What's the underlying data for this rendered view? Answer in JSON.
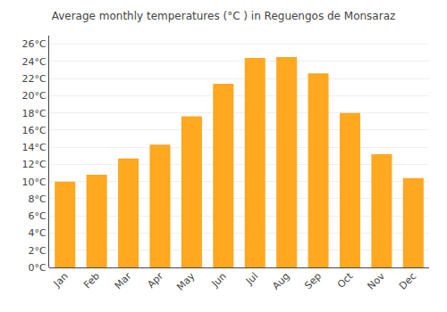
{
  "chart_data": {
    "type": "bar",
    "title": "Average monthly temperatures (°C ) in Reguengos de Monsaraz",
    "categories": [
      "Jan",
      "Feb",
      "Mar",
      "Apr",
      "May",
      "Jun",
      "Jul",
      "Aug",
      "Sep",
      "Oct",
      "Nov",
      "Dec"
    ],
    "values": [
      10.0,
      10.8,
      12.7,
      14.3,
      17.6,
      21.4,
      24.4,
      24.5,
      22.6,
      18.0,
      13.2,
      10.4
    ],
    "color": "#FFA820",
    "ylim": [
      0,
      27
    ],
    "yticks": [
      {
        "value": 0,
        "label": "0°C"
      },
      {
        "value": 2,
        "label": "2°C"
      },
      {
        "value": 4,
        "label": "4°C"
      },
      {
        "value": 6,
        "label": "6°C"
      },
      {
        "value": 8,
        "label": "8°C"
      },
      {
        "value": 10,
        "label": "10°C"
      },
      {
        "value": 12,
        "label": "12°C"
      },
      {
        "value": 14,
        "label": "14°C"
      },
      {
        "value": 16,
        "label": "16°C"
      },
      {
        "value": 18,
        "label": "18°C"
      },
      {
        "value": 20,
        "label": "20°C"
      },
      {
        "value": 22,
        "label": "22°C"
      },
      {
        "value": 24,
        "label": "24°C"
      },
      {
        "value": 26,
        "label": "26°C"
      }
    ],
    "grid": true
  }
}
